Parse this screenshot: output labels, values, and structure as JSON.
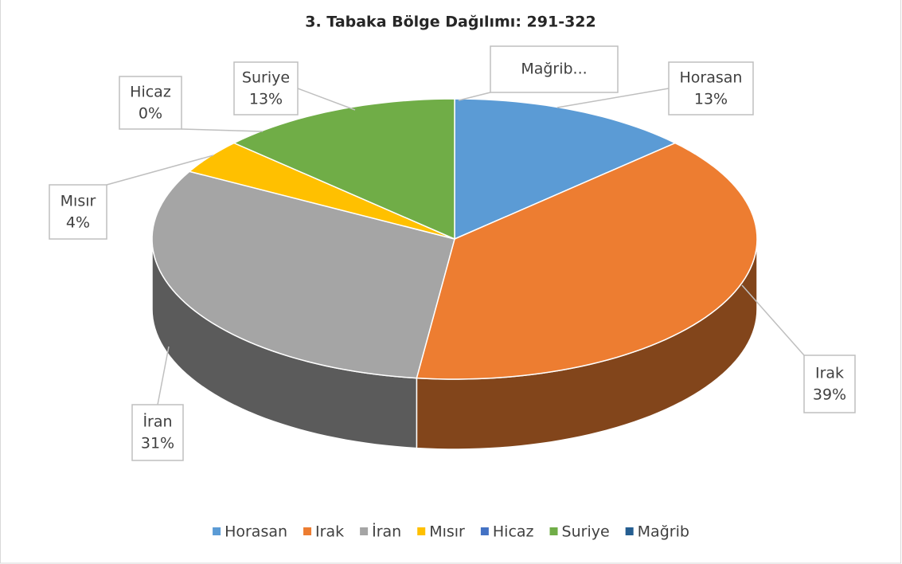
{
  "chart_data": {
    "type": "pie3d",
    "title": "3. Tabaka Bölge Dağılımı: 291-322",
    "categories": [
      "Horasan",
      "Irak",
      "İran",
      "Mısır",
      "Hicaz",
      "Suriye",
      "Mağrib"
    ],
    "values": [
      13,
      39,
      31,
      4,
      0,
      13,
      0
    ],
    "value_labels": [
      "13%",
      "39%",
      "31%",
      "4%",
      "0%",
      "13%",
      null
    ],
    "data_label_names": [
      "Horasan",
      "Irak",
      "İran",
      "Mısır",
      "Hicaz",
      "Suriye",
      "Mağrib..."
    ],
    "colors": [
      "#5b9bd5",
      "#ed7d31",
      "#a5a5a5",
      "#ffc000",
      "#4472c4",
      "#70ad47",
      "#255e91"
    ],
    "legend": "bottom"
  }
}
